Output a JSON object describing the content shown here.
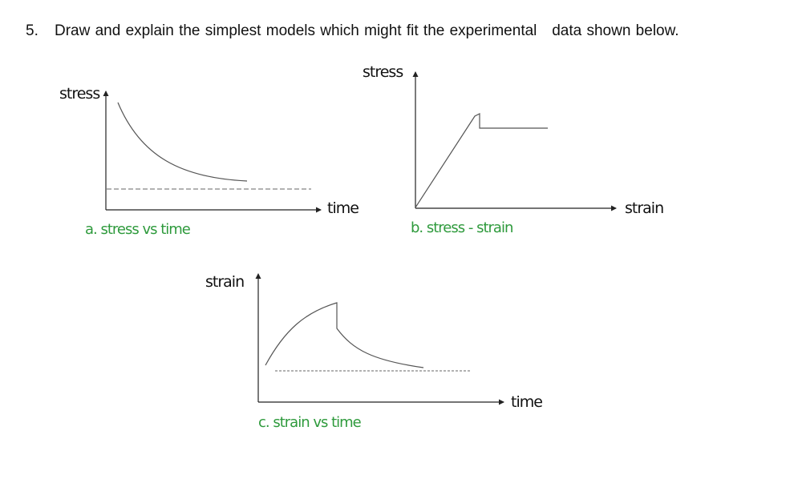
{
  "question": {
    "number": "5.",
    "text": "Draw and explain the simplest models which might fit the experimental   data shown below."
  },
  "figures": {
    "a": {
      "y_label": "stress",
      "x_label": "time",
      "caption": "a. stress vs time"
    },
    "b": {
      "y_label": "stress",
      "x_label": "strain",
      "caption": "b. stress - strain"
    },
    "c": {
      "y_label": "strain",
      "x_label": "time",
      "caption": "c. strain vs time"
    }
  },
  "colors": {
    "caption": "#2e9a3c",
    "axis": "#222222",
    "curve": "#555555",
    "dashed": "#666666"
  }
}
